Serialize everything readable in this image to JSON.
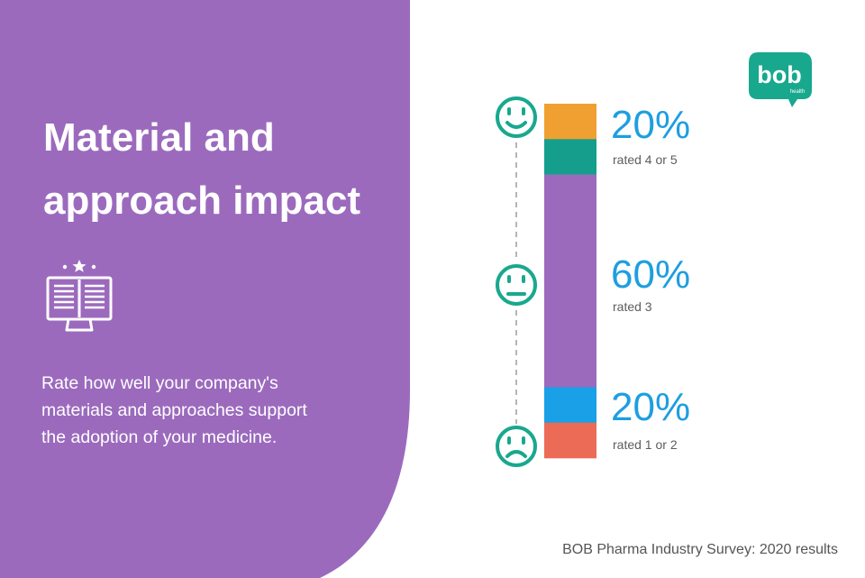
{
  "title_lines": [
    "Material and",
    "approach impact"
  ],
  "description_lines": [
    "Rate how well your company's",
    "materials and approaches support",
    "the adoption of your medicine."
  ],
  "logo": {
    "text": "bob",
    "subtext": "health"
  },
  "source": "BOB Pharma Industry Survey: 2020 results",
  "colors": {
    "panel": "#9b6abd",
    "face": "#18a88e",
    "accent_text": "#1e9ee0"
  },
  "chart_data": {
    "type": "bar",
    "orientation": "vertical-stacked",
    "segments": [
      {
        "value": 10,
        "color": "#f0a030"
      },
      {
        "value": 10,
        "color": "#159e8c"
      },
      {
        "value": 60,
        "color": "#9b6abd"
      },
      {
        "value": 10,
        "color": "#1aa0e6"
      },
      {
        "value": 10,
        "color": "#ec6b57"
      }
    ],
    "groups": [
      {
        "percent": "20%",
        "label": "rated 4 or 5",
        "face": "happy-face-icon"
      },
      {
        "percent": "60%",
        "label": "rated 3",
        "face": "neutral-face-icon"
      },
      {
        "percent": "20%",
        "label": "rated 1 or 2",
        "face": "sad-face-icon"
      }
    ]
  }
}
